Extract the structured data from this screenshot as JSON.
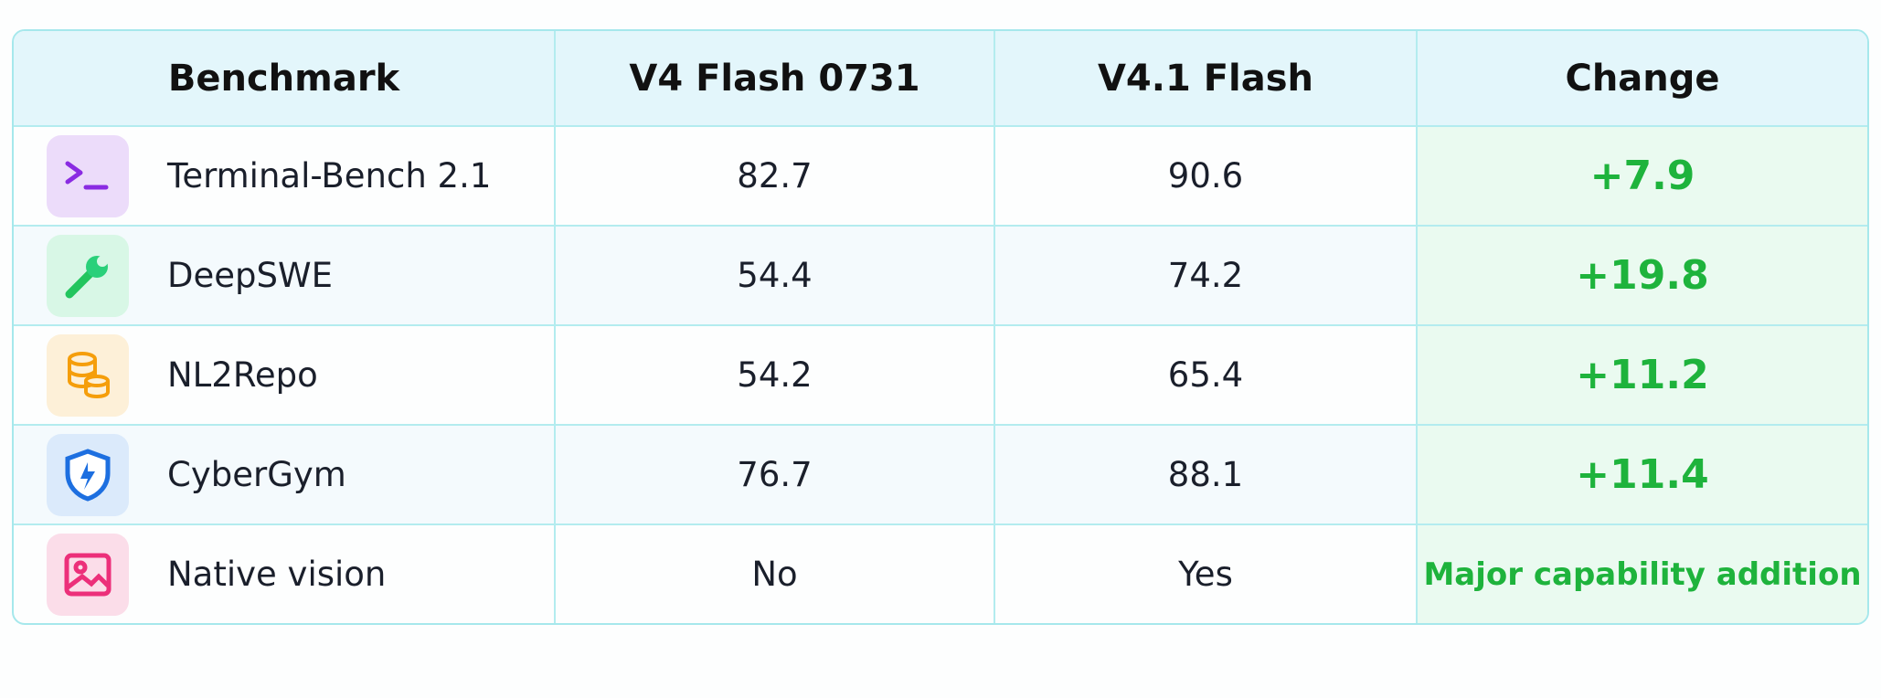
{
  "table": {
    "header": [
      "Benchmark",
      "V4 Flash 0731",
      "V4.1 Flash",
      "Change"
    ],
    "rows": [
      [
        "Terminal-Bench 2.1",
        "82.7",
        "90.6",
        "+7.9"
      ],
      [
        "DeepSWE",
        "54.4",
        "74.2",
        "+19.8"
      ],
      [
        "NL2Repo",
        "54.2",
        "65.4",
        "+11.2"
      ],
      [
        "CyberGym",
        "76.7",
        "88.1",
        "+11.4"
      ],
      [
        "Native vision",
        "No",
        "Yes",
        "Major capability addition"
      ]
    ]
  }
}
